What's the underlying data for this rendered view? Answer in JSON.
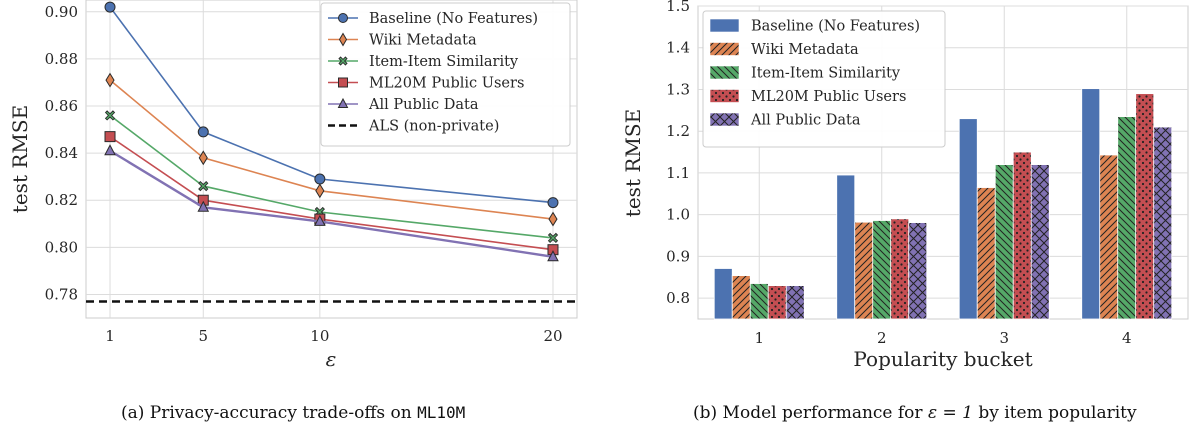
{
  "colors": {
    "series": [
      "#4c72b0",
      "#dd8452",
      "#55a868",
      "#c44e52",
      "#8172b3"
    ],
    "grid": "#dcdcdc",
    "frame": "#cccccc"
  },
  "chart_data": [
    {
      "type": "line",
      "ylabel": "test RMSE",
      "xlabel": "ε",
      "x": [
        1,
        5,
        10,
        20
      ],
      "xticks": [
        "1",
        "5",
        "10",
        "20"
      ],
      "yticks": [
        "0.78",
        "0.80",
        "0.82",
        "0.84",
        "0.86",
        "0.88",
        "0.90"
      ],
      "ylim": [
        0.77,
        0.905
      ],
      "grid": true,
      "legend_position": "top-right",
      "series": [
        {
          "name": "Baseline (No Features)",
          "values": [
            0.902,
            0.849,
            0.829,
            0.819
          ],
          "marker": "circle"
        },
        {
          "name": "Wiki Metadata",
          "values": [
            0.871,
            0.838,
            0.824,
            0.812
          ],
          "marker": "diamond"
        },
        {
          "name": "Item-Item Similarity",
          "values": [
            0.856,
            0.826,
            0.815,
            0.804
          ],
          "marker": "x"
        },
        {
          "name": "ML20M Public Users",
          "values": [
            0.847,
            0.82,
            0.812,
            0.799
          ],
          "marker": "square"
        },
        {
          "name": "All Public Data",
          "values": [
            0.841,
            0.817,
            0.811,
            0.796
          ],
          "marker": "triangle"
        }
      ],
      "reference_line": {
        "name": "ALS (non-private)",
        "value": 0.777,
        "style": "dashed"
      },
      "caption": {
        "prefix": "(a) Privacy-accuracy trade-offs on ",
        "code": "ML10M"
      }
    },
    {
      "type": "bar",
      "ylabel": "test RMSE",
      "xlabel": "Popularity bucket",
      "categories": [
        "1",
        "2",
        "3",
        "4"
      ],
      "yticks": [
        "0.8",
        "0.9",
        "1.0",
        "1.1",
        "1.2",
        "1.3",
        "1.4",
        "1.5"
      ],
      "ylim": [
        0.75,
        1.5
      ],
      "grid": true,
      "legend_position": "top-left",
      "series": [
        {
          "name": "Baseline (No Features)",
          "values": [
            0.871,
            1.095,
            1.23,
            1.302
          ],
          "hatch": "none"
        },
        {
          "name": "Wiki Metadata",
          "values": [
            0.854,
            0.982,
            1.065,
            1.143
          ],
          "hatch": "diagonal"
        },
        {
          "name": "Item-Item Similarity",
          "values": [
            0.835,
            0.986,
            1.12,
            1.235
          ],
          "hatch": "back-diagonal"
        },
        {
          "name": "ML20M Public Users",
          "values": [
            0.83,
            0.99,
            1.15,
            1.29
          ],
          "hatch": "dots"
        },
        {
          "name": "All Public Data",
          "values": [
            0.83,
            0.981,
            1.12,
            1.21
          ],
          "hatch": "cross"
        }
      ],
      "caption": {
        "prefix": "(b) Model performance for ",
        "math": "ε = 1",
        "suffix": " by item popularity"
      }
    }
  ]
}
